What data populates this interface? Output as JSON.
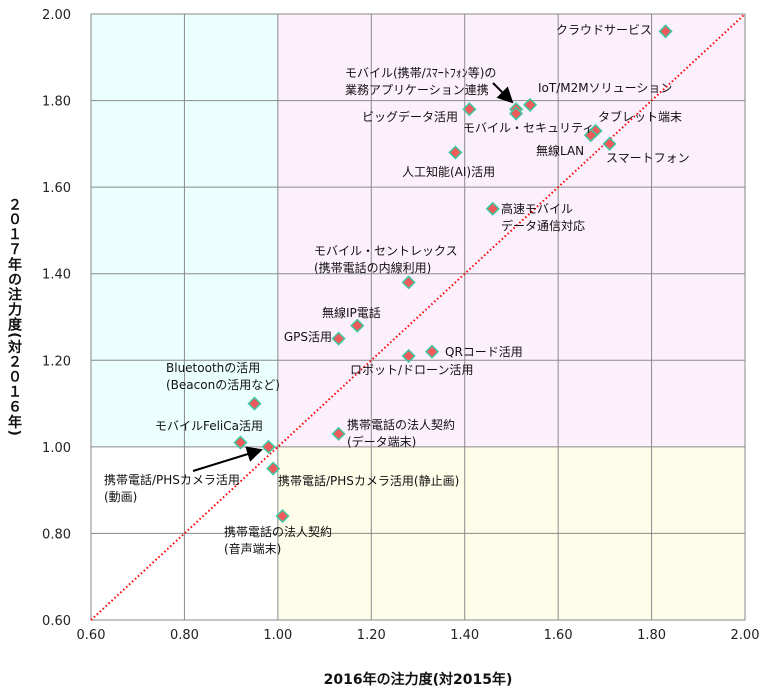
{
  "chart_data": {
    "type": "scatter",
    "title": "",
    "xlabel": "2016年の注力度(対2015年)",
    "ylabel": "２０１７年の注力度(対２０１６年)",
    "xlim": [
      0.6,
      2.0
    ],
    "ylim": [
      0.6,
      2.0
    ],
    "xticks": [
      "0.60",
      "0.80",
      "1.00",
      "1.20",
      "1.40",
      "1.60",
      "1.80",
      "2.00"
    ],
    "yticks": [
      "0.60",
      "0.80",
      "1.00",
      "1.20",
      "1.40",
      "1.60",
      "1.80",
      "2.00"
    ],
    "grid": true,
    "reference_line": {
      "type": "y=x",
      "style": "dotted",
      "color": "#ff0000"
    },
    "quadrant_colors": {
      "upper_left": "#ebfffe",
      "upper_right": "#fdf0fd",
      "lower_right": "#fefde9",
      "lower_left": "#ffffff"
    },
    "marker_color": "#f05a5a",
    "marker_edge_color": "#3cc8a0",
    "points": [
      {
        "label": [
          "クラウドサービス"
        ],
        "x": 1.83,
        "y": 1.96
      },
      {
        "label": [
          "モバイル(携帯/ｽﾏｰﾄﾌｫﾝ等)の",
          "業務アプリケーション連携"
        ],
        "x": 1.51,
        "y": 1.78
      },
      {
        "label": [
          "IoT/M2Mソリューション"
        ],
        "x": 1.54,
        "y": 1.79
      },
      {
        "label": [
          "ビッグデータ活用"
        ],
        "x": 1.41,
        "y": 1.78
      },
      {
        "label": [
          "モバイル・セキュリティ"
        ],
        "x": 1.51,
        "y": 1.77
      },
      {
        "label": [
          "タブレット端末"
        ],
        "x": 1.68,
        "y": 1.73
      },
      {
        "label": [
          "無線LAN"
        ],
        "x": 1.67,
        "y": 1.72
      },
      {
        "label": [
          "スマートフォン"
        ],
        "x": 1.71,
        "y": 1.7
      },
      {
        "label": [
          "人工知能(AI)活用"
        ],
        "x": 1.38,
        "y": 1.68
      },
      {
        "label": [
          "高速モバイル",
          "データ通信対応"
        ],
        "x": 1.46,
        "y": 1.55
      },
      {
        "label": [
          "モバイル・セントレックス",
          "(携帯電話の内線利用)"
        ],
        "x": 1.28,
        "y": 1.38
      },
      {
        "label": [
          "無線IP電話"
        ],
        "x": 1.17,
        "y": 1.28
      },
      {
        "label": [
          "GPS活用"
        ],
        "x": 1.13,
        "y": 1.25
      },
      {
        "label": [
          "QRコード活用"
        ],
        "x": 1.33,
        "y": 1.22
      },
      {
        "label": [
          "ロボット/ドローン活用"
        ],
        "x": 1.28,
        "y": 1.21
      },
      {
        "label": [
          "Bluetoothの活用",
          "(Beaconの活用など)"
        ],
        "x": 0.95,
        "y": 1.1
      },
      {
        "label": [
          "モバイルFeliCa活用"
        ],
        "x": 0.92,
        "y": 1.01
      },
      {
        "label": [
          "携帯電話/PHSカメラ活用",
          "(動画)"
        ],
        "x": 0.98,
        "y": 1.0
      },
      {
        "label": [
          "携帯電話の法人契約",
          "(データ端末)"
        ],
        "x": 1.13,
        "y": 1.03
      },
      {
        "label": [
          "携帯電話/PHSカメラ活用(静止画)"
        ],
        "x": 0.99,
        "y": 0.95
      },
      {
        "label": [
          "携帯電話の法人契約",
          "(音声端末)"
        ],
        "x": 1.01,
        "y": 0.84
      }
    ]
  }
}
